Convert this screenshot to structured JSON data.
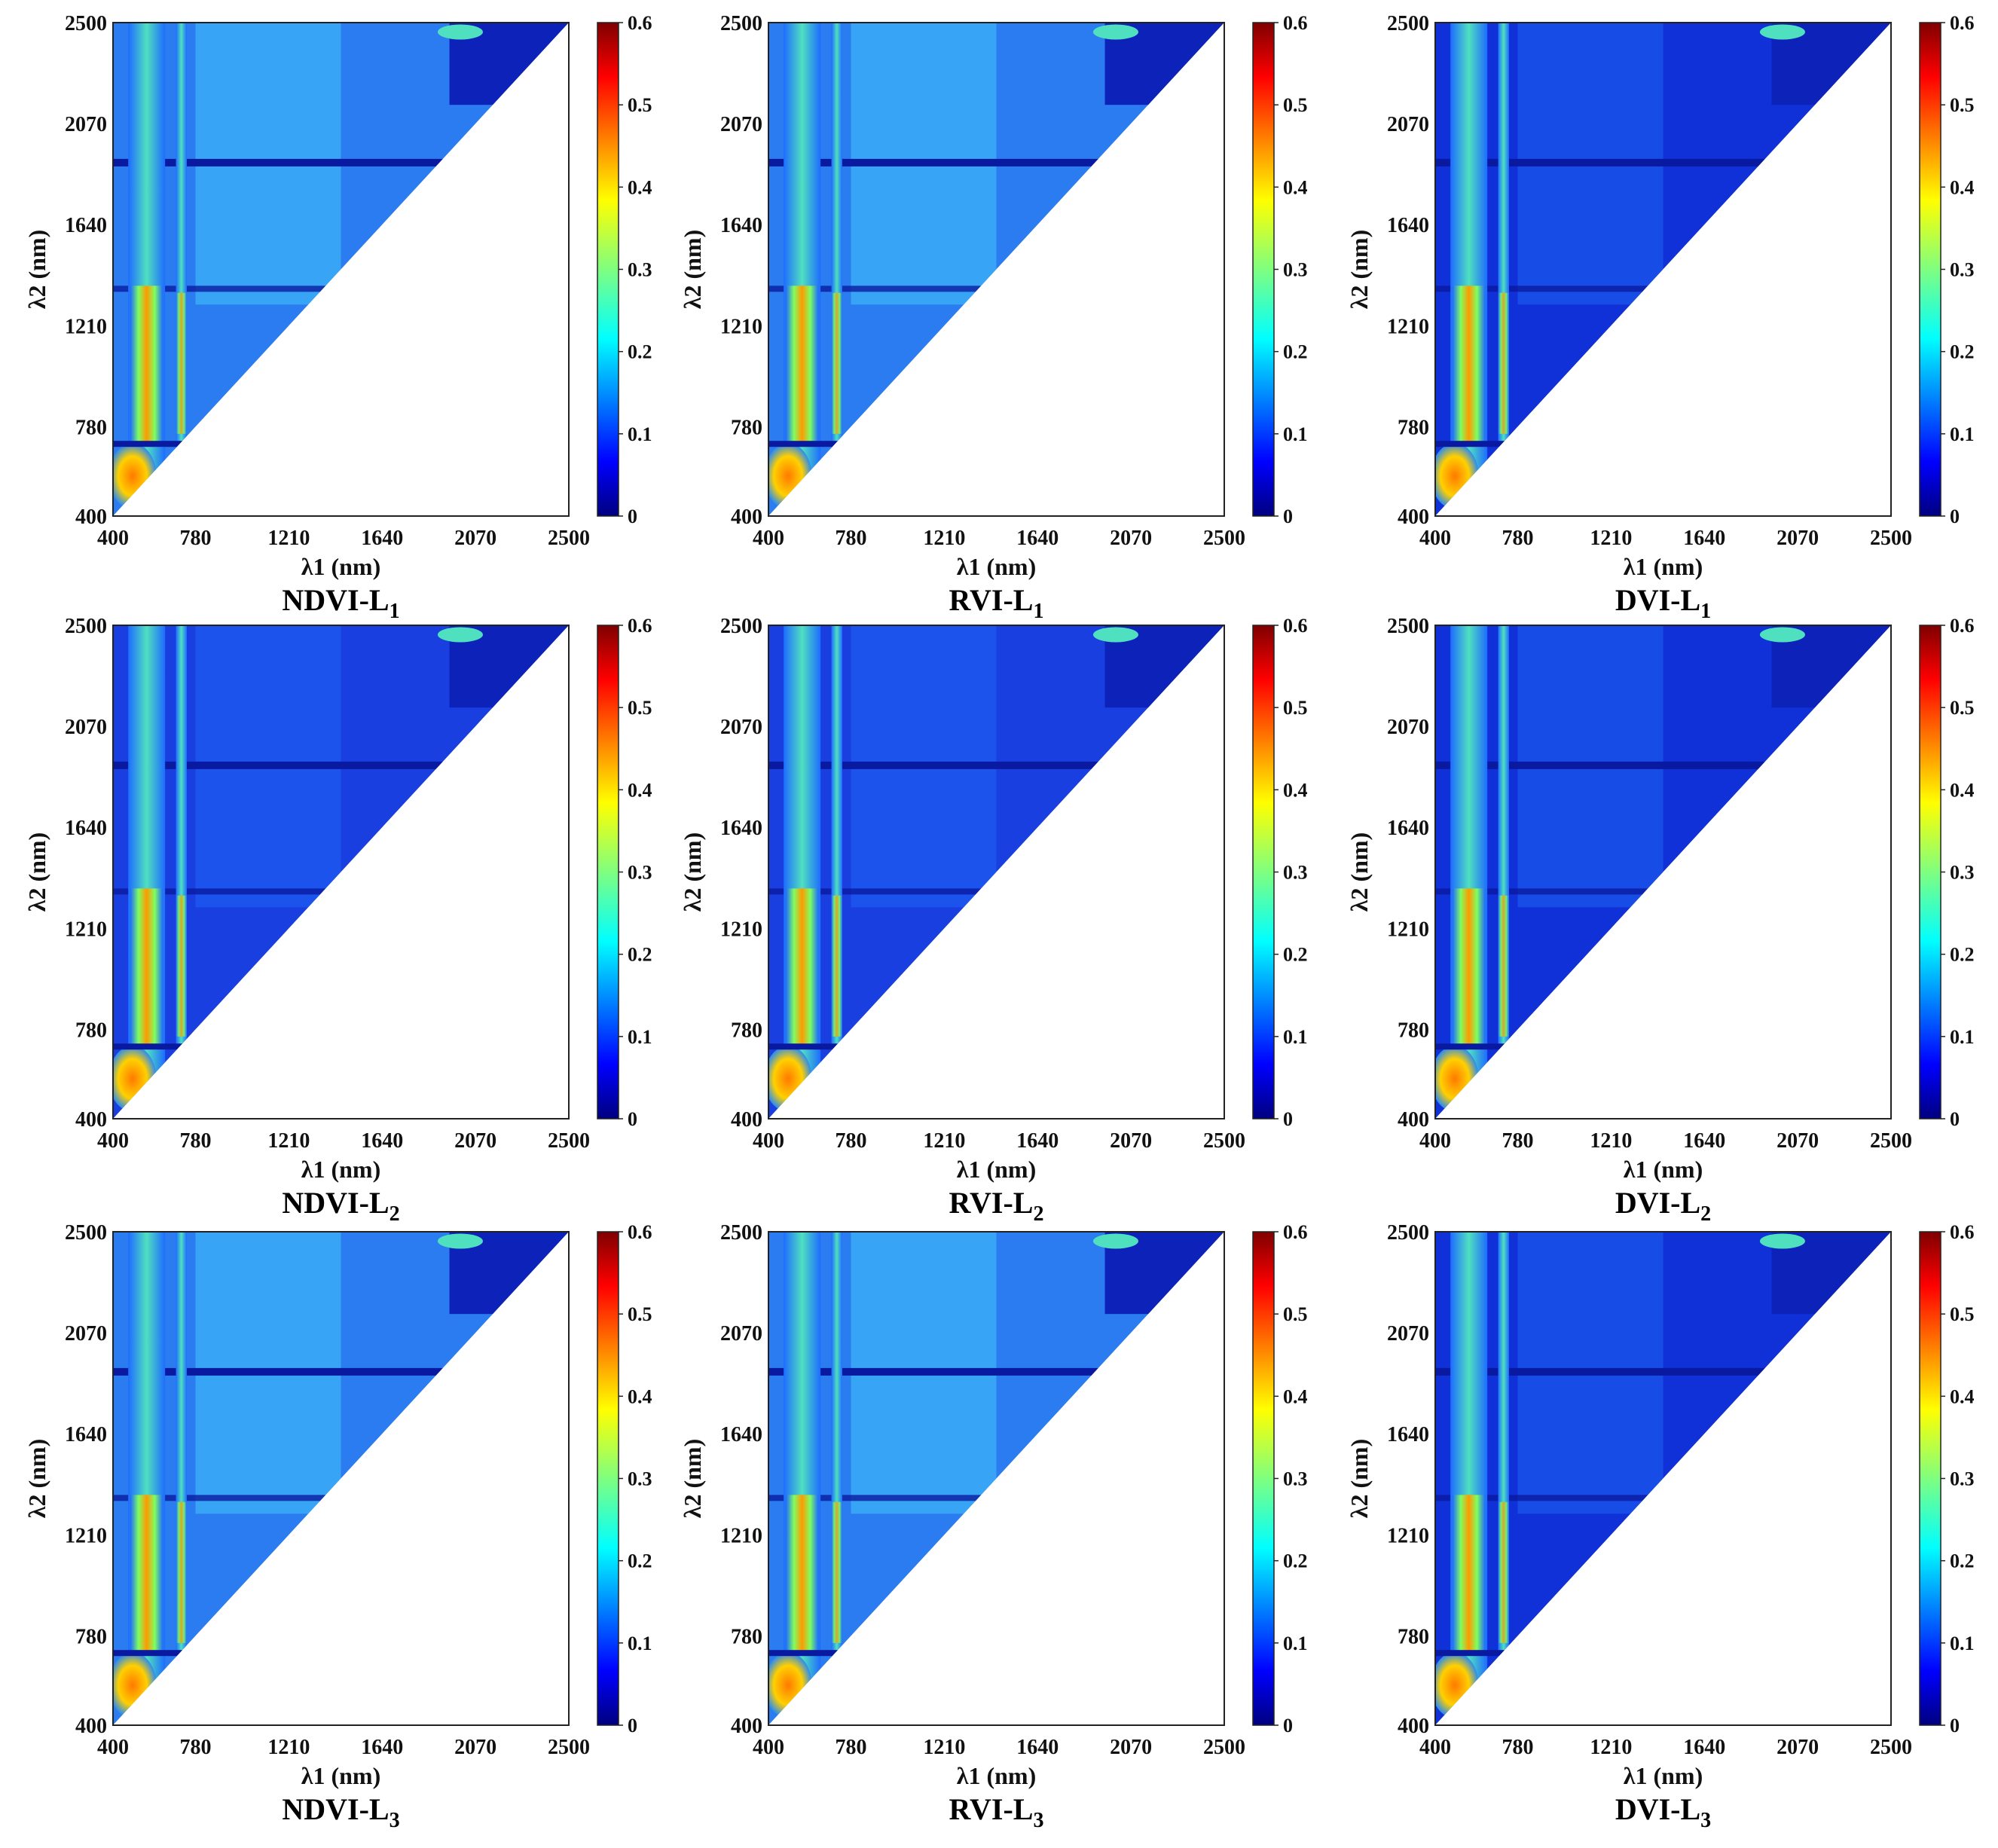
{
  "chart_data": [
    {
      "type": "heatmap",
      "title_main": "NDVI-L",
      "title_sub": "1",
      "index": "NDVI",
      "level": "L1",
      "xlabel": "λ1 (nm)",
      "ylabel": "λ2 (nm)",
      "xticks": [
        "400",
        "780",
        "1210",
        "1640",
        "2070",
        "2500"
      ],
      "yticks": [
        "400",
        "780",
        "1210",
        "1640",
        "2070",
        "2500"
      ],
      "xlim": [
        400,
        2500
      ],
      "ylim": [
        400,
        2500
      ],
      "colorbar": {
        "ticks": [
          "0",
          "0.1",
          "0.2",
          "0.3",
          "0.4",
          "0.5",
          "0.6"
        ],
        "range": [
          0,
          0.6
        ],
        "colormap": "jet"
      },
      "region": "upper-triangle (λ2 > λ1)"
    },
    {
      "type": "heatmap",
      "title_main": "RVI-L",
      "title_sub": "1",
      "index": "RVI",
      "level": "L1",
      "xlabel": "λ1 (nm)",
      "ylabel": "λ2 (nm)",
      "xticks": [
        "400",
        "780",
        "1210",
        "1640",
        "2070",
        "2500"
      ],
      "yticks": [
        "400",
        "780",
        "1210",
        "1640",
        "2070",
        "2500"
      ],
      "xlim": [
        400,
        2500
      ],
      "ylim": [
        400,
        2500
      ],
      "colorbar": {
        "ticks": [
          "0",
          "0.1",
          "0.2",
          "0.3",
          "0.4",
          "0.5",
          "0.6"
        ],
        "range": [
          0,
          0.6
        ],
        "colormap": "jet"
      },
      "region": "upper-triangle (λ2 > λ1)"
    },
    {
      "type": "heatmap",
      "title_main": "DVI-L",
      "title_sub": "1",
      "index": "DVI",
      "level": "L1",
      "xlabel": "λ1 (nm)",
      "ylabel": "λ2 (nm)",
      "xticks": [
        "400",
        "780",
        "1210",
        "1640",
        "2070",
        "2500"
      ],
      "yticks": [
        "400",
        "780",
        "1210",
        "1640",
        "2070",
        "2500"
      ],
      "xlim": [
        400,
        2500
      ],
      "ylim": [
        400,
        2500
      ],
      "colorbar": {
        "ticks": [
          "0",
          "0.1",
          "0.2",
          "0.3",
          "0.4",
          "0.5",
          "0.6"
        ],
        "range": [
          0,
          0.6
        ],
        "colormap": "jet"
      },
      "region": "upper-triangle (λ2 > λ1)"
    },
    {
      "type": "heatmap",
      "title_main": "NDVI-L",
      "title_sub": "2",
      "index": "NDVI",
      "level": "L2",
      "xlabel": "λ1 (nm)",
      "ylabel": "λ2 (nm)",
      "xticks": [
        "400",
        "780",
        "1210",
        "1640",
        "2070",
        "2500"
      ],
      "yticks": [
        "400",
        "780",
        "1210",
        "1640",
        "2070",
        "2500"
      ],
      "xlim": [
        400,
        2500
      ],
      "ylim": [
        400,
        2500
      ],
      "colorbar": {
        "ticks": [
          "0",
          "0.1",
          "0.2",
          "0.3",
          "0.4",
          "0.5",
          "0.6"
        ],
        "range": [
          0,
          0.6
        ],
        "colormap": "jet"
      },
      "region": "upper-triangle (λ2 > λ1)"
    },
    {
      "type": "heatmap",
      "title_main": "RVI-L",
      "title_sub": "2",
      "index": "RVI",
      "level": "L2",
      "xlabel": "λ1 (nm)",
      "ylabel": "λ2 (nm)",
      "xticks": [
        "400",
        "780",
        "1210",
        "1640",
        "2070",
        "2500"
      ],
      "yticks": [
        "400",
        "780",
        "1210",
        "1640",
        "2070",
        "2500"
      ],
      "xlim": [
        400,
        2500
      ],
      "ylim": [
        400,
        2500
      ],
      "colorbar": {
        "ticks": [
          "0",
          "0.1",
          "0.2",
          "0.3",
          "0.4",
          "0.5",
          "0.6"
        ],
        "range": [
          0,
          0.6
        ],
        "colormap": "jet"
      },
      "region": "upper-triangle (λ2 > λ1)"
    },
    {
      "type": "heatmap",
      "title_main": "DVI-L",
      "title_sub": "2",
      "index": "DVI",
      "level": "L2",
      "xlabel": "λ1 (nm)",
      "ylabel": "λ2 (nm)",
      "xticks": [
        "400",
        "780",
        "1210",
        "1640",
        "2070",
        "2500"
      ],
      "yticks": [
        "400",
        "780",
        "1210",
        "1640",
        "2070",
        "2500"
      ],
      "xlim": [
        400,
        2500
      ],
      "ylim": [
        400,
        2500
      ],
      "colorbar": {
        "ticks": [
          "0",
          "0.1",
          "0.2",
          "0.3",
          "0.4",
          "0.5",
          "0.6"
        ],
        "range": [
          0,
          0.6
        ],
        "colormap": "jet"
      },
      "region": "upper-triangle (λ2 > λ1)"
    },
    {
      "type": "heatmap",
      "title_main": "NDVI-L",
      "title_sub": "3",
      "index": "NDVI",
      "level": "L3",
      "xlabel": "λ1 (nm)",
      "ylabel": "λ2 (nm)",
      "xticks": [
        "400",
        "780",
        "1210",
        "1640",
        "2070",
        "2500"
      ],
      "yticks": [
        "400",
        "780",
        "1210",
        "1640",
        "2070",
        "2500"
      ],
      "xlim": [
        400,
        2500
      ],
      "ylim": [
        400,
        2500
      ],
      "colorbar": {
        "ticks": [
          "0",
          "0.1",
          "0.2",
          "0.3",
          "0.4",
          "0.5",
          "0.6"
        ],
        "range": [
          0,
          0.6
        ],
        "colormap": "jet"
      },
      "region": "upper-triangle (λ2 > λ1)"
    },
    {
      "type": "heatmap",
      "title_main": "RVI-L",
      "title_sub": "3",
      "index": "RVI",
      "level": "L3",
      "xlabel": "λ1 (nm)",
      "ylabel": "λ2 (nm)",
      "xticks": [
        "400",
        "780",
        "1210",
        "1640",
        "2070",
        "2500"
      ],
      "yticks": [
        "400",
        "780",
        "1210",
        "1640",
        "2070",
        "2500"
      ],
      "xlim": [
        400,
        2500
      ],
      "ylim": [
        400,
        2500
      ],
      "colorbar": {
        "ticks": [
          "0",
          "0.1",
          "0.2",
          "0.3",
          "0.4",
          "0.5",
          "0.6"
        ],
        "range": [
          0,
          0.6
        ],
        "colormap": "jet"
      },
      "region": "upper-triangle (λ2 > λ1)"
    },
    {
      "type": "heatmap",
      "title_main": "DVI-L",
      "title_sub": "3",
      "index": "DVI",
      "level": "L3",
      "xlabel": "λ1 (nm)",
      "ylabel": "λ2 (nm)",
      "xticks": [
        "400",
        "780",
        "1210",
        "1640",
        "2070",
        "2500"
      ],
      "yticks": [
        "400",
        "780",
        "1210",
        "1640",
        "2070",
        "2500"
      ],
      "xlim": [
        400,
        2500
      ],
      "ylim": [
        400,
        2500
      ],
      "colorbar": {
        "ticks": [
          "0",
          "0.1",
          "0.2",
          "0.3",
          "0.4",
          "0.5",
          "0.6"
        ],
        "range": [
          0,
          0.6
        ],
        "colormap": "jet"
      },
      "region": "upper-triangle (λ2 > λ1)"
    }
  ],
  "colors": {
    "jet": [
      "#00007f",
      "#0000ff",
      "#007fff",
      "#00ffff",
      "#7fff7f",
      "#ffff00",
      "#ff7f00",
      "#ff0000",
      "#7f0000"
    ],
    "panel_bg": "#1a3fd6",
    "band_hot": "#f39a10",
    "band_warm": "#3fd3e0",
    "band_mid": "#2a8cf0",
    "dark": "#0a1aa0"
  }
}
